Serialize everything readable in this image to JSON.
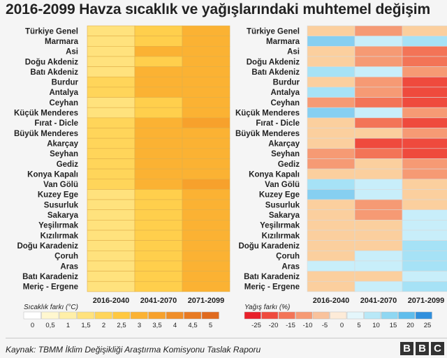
{
  "title": "2016-2099 Havza sıcaklık ve yağışlarındaki muhtemel değişim",
  "chart_data": [
    {
      "type": "heatmap",
      "name": "temperature",
      "rows": [
        "Türkiye Genel",
        "Marmara",
        "Asi",
        "Doğu Akdeniz",
        "Batı Akdeniz",
        "Burdur",
        "Antalya",
        "Ceyhan",
        "Küçük Menderes",
        "Fırat - Dicle",
        "Büyük Menderes",
        "Akarçay",
        "Seyhan",
        "Gediz",
        "Konya Kapalı",
        "Van Gölü",
        "Kuzey Ege",
        "Susurluk",
        "Sakarya",
        "Yeşilırmak",
        "Kızılırmak",
        "Doğu Karadeniz",
        "Çoruh",
        "Aras",
        "Batı Karadeniz",
        "Meriç - Ergene"
      ],
      "columns": [
        "2016-2040",
        "2041-2070",
        "2071-2099"
      ],
      "values": [
        [
          1.5,
          2.5,
          3
        ],
        [
          1.5,
          2.5,
          3
        ],
        [
          1.5,
          3,
          3
        ],
        [
          1.5,
          2.5,
          3
        ],
        [
          1.5,
          3,
          3
        ],
        [
          2,
          3,
          3
        ],
        [
          2,
          3,
          3
        ],
        [
          1.5,
          2.5,
          3
        ],
        [
          1.5,
          2.5,
          3
        ],
        [
          2,
          3,
          3.5
        ],
        [
          2,
          3,
          3
        ],
        [
          2,
          3,
          3
        ],
        [
          2,
          3,
          3
        ],
        [
          2,
          3,
          3
        ],
        [
          2,
          3,
          3
        ],
        [
          2,
          3,
          3.5
        ],
        [
          1.5,
          2.5,
          3
        ],
        [
          1.5,
          2.5,
          3
        ],
        [
          1.5,
          2.5,
          3
        ],
        [
          1.5,
          2.5,
          3
        ],
        [
          1.5,
          2.5,
          3
        ],
        [
          1.5,
          2.5,
          3
        ],
        [
          1.5,
          2.5,
          3
        ],
        [
          1.5,
          2.5,
          3
        ],
        [
          1.5,
          2.5,
          3
        ],
        [
          1.5,
          2.5,
          3
        ]
      ],
      "legend_title": "Sıcaklık farkı (°C)",
      "legend_ticks": [
        "0",
        "0,5",
        "1",
        "1,5",
        "2",
        "2,5",
        "3",
        "3,5",
        "4",
        "4,5",
        "5"
      ],
      "legend_colors": [
        "#ffffff",
        "#fff7cf",
        "#ffefa8",
        "#ffe27d",
        "#ffd55a",
        "#ffc840",
        "#fbb233",
        "#f7a12c",
        "#f08e28",
        "#e87a22",
        "#e06a1e"
      ]
    },
    {
      "type": "heatmap",
      "name": "precipitation",
      "rows": [
        "Türkiye Genel",
        "Marmara",
        "Asi",
        "Doğu Akdeniz",
        "Batı Akdeniz",
        "Burdur",
        "Antalya",
        "Ceyhan",
        "Küçük Menderes",
        "Fırat - Dicle",
        "Büyük Menderes",
        "Akarçay",
        "Seyhan",
        "Gediz",
        "Konya Kapalı",
        "Van Gölü",
        "Kuzey Ege",
        "Susurluk",
        "Sakarya",
        "Yeşilırmak",
        "Kızılırmak",
        "Doğu Karadeniz",
        "Çoruh",
        "Aras",
        "Batı Karadeniz",
        "Meriç - Ergene"
      ],
      "columns": [
        "2016-2040",
        "2041-2070",
        "2071-2099"
      ],
      "values": [
        [
          -5,
          -10,
          -5
        ],
        [
          10,
          0,
          5
        ],
        [
          -5,
          -10,
          -15
        ],
        [
          -5,
          -10,
          -15
        ],
        [
          5,
          0,
          -10
        ],
        [
          -5,
          -10,
          -20
        ],
        [
          5,
          -10,
          -20
        ],
        [
          -10,
          -15,
          -20
        ],
        [
          10,
          0,
          -10
        ],
        [
          -5,
          -15,
          -20
        ],
        [
          -5,
          -5,
          -10
        ],
        [
          -5,
          -20,
          -20
        ],
        [
          -10,
          -15,
          -20
        ],
        [
          -10,
          -5,
          -10
        ],
        [
          -5,
          -5,
          -10
        ],
        [
          5,
          0,
          -5
        ],
        [
          10,
          0,
          -5
        ],
        [
          -5,
          -10,
          -5
        ],
        [
          -5,
          -10,
          0
        ],
        [
          -5,
          -5,
          0
        ],
        [
          -5,
          -5,
          0
        ],
        [
          -5,
          -5,
          5
        ],
        [
          -5,
          0,
          5
        ],
        [
          0,
          0,
          5
        ],
        [
          -5,
          -5,
          0
        ],
        [
          -5,
          0,
          5
        ]
      ],
      "legend_title": "Yağış farkı (%)",
      "legend_ticks": [
        "-25",
        "-20",
        "-15",
        "-10",
        "-5",
        "0",
        "5",
        "10",
        "15",
        "20",
        "25"
      ],
      "legend_colors": [
        "#e8202a",
        "#ef4a3d",
        "#f37457",
        "#f69a74",
        "#f9c29c",
        "#fdebd8",
        "#e4f6fb",
        "#b8e8f7",
        "#8fd7f2",
        "#5fbdec",
        "#2f8fdd",
        "#1858c3"
      ]
    }
  ],
  "source": "Kaynak: TBMM İklim Değişikliği Araştırma Komisyonu Taslak Raporu",
  "logo": [
    "B",
    "B",
    "C"
  ]
}
